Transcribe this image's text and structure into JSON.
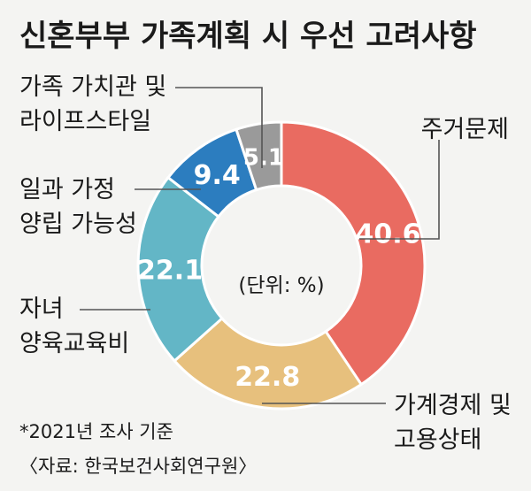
{
  "chart_data": {
    "type": "pie",
    "title": "신혼부부 가족계획 시 우선 고려사항",
    "unit_label": "(단위: %)",
    "slices": [
      {
        "label": "주거문제",
        "value": 40.6,
        "color": "#e96b61"
      },
      {
        "label": "가계경제 및 고용상태",
        "value": 22.8,
        "color": "#e7c07d"
      },
      {
        "label": "자녀 양육교육비",
        "value": 22.1,
        "color": "#63b6c6"
      },
      {
        "label": "일과 가정 양립 가능성",
        "value": 9.4,
        "color": "#2c7dbf"
      },
      {
        "label": "가족 가치관 및 라이프스타일",
        "value": 5.1,
        "color": "#9a9a9a"
      }
    ],
    "notes": [
      "*2021년 조사 기준",
      "〈자료: 한국보건사회연구원〉"
    ]
  },
  "labels": {
    "housing": [
      "주거문제"
    ],
    "economy": [
      "가계경제 및",
      "고용상태"
    ],
    "childcare": [
      "자녀",
      "양육교육비"
    ],
    "worklife": [
      "일과 가정",
      "양립 가능성"
    ],
    "values": [
      "가족 가치관 및",
      "라이프스타일"
    ]
  },
  "background": "#f4f4f2"
}
